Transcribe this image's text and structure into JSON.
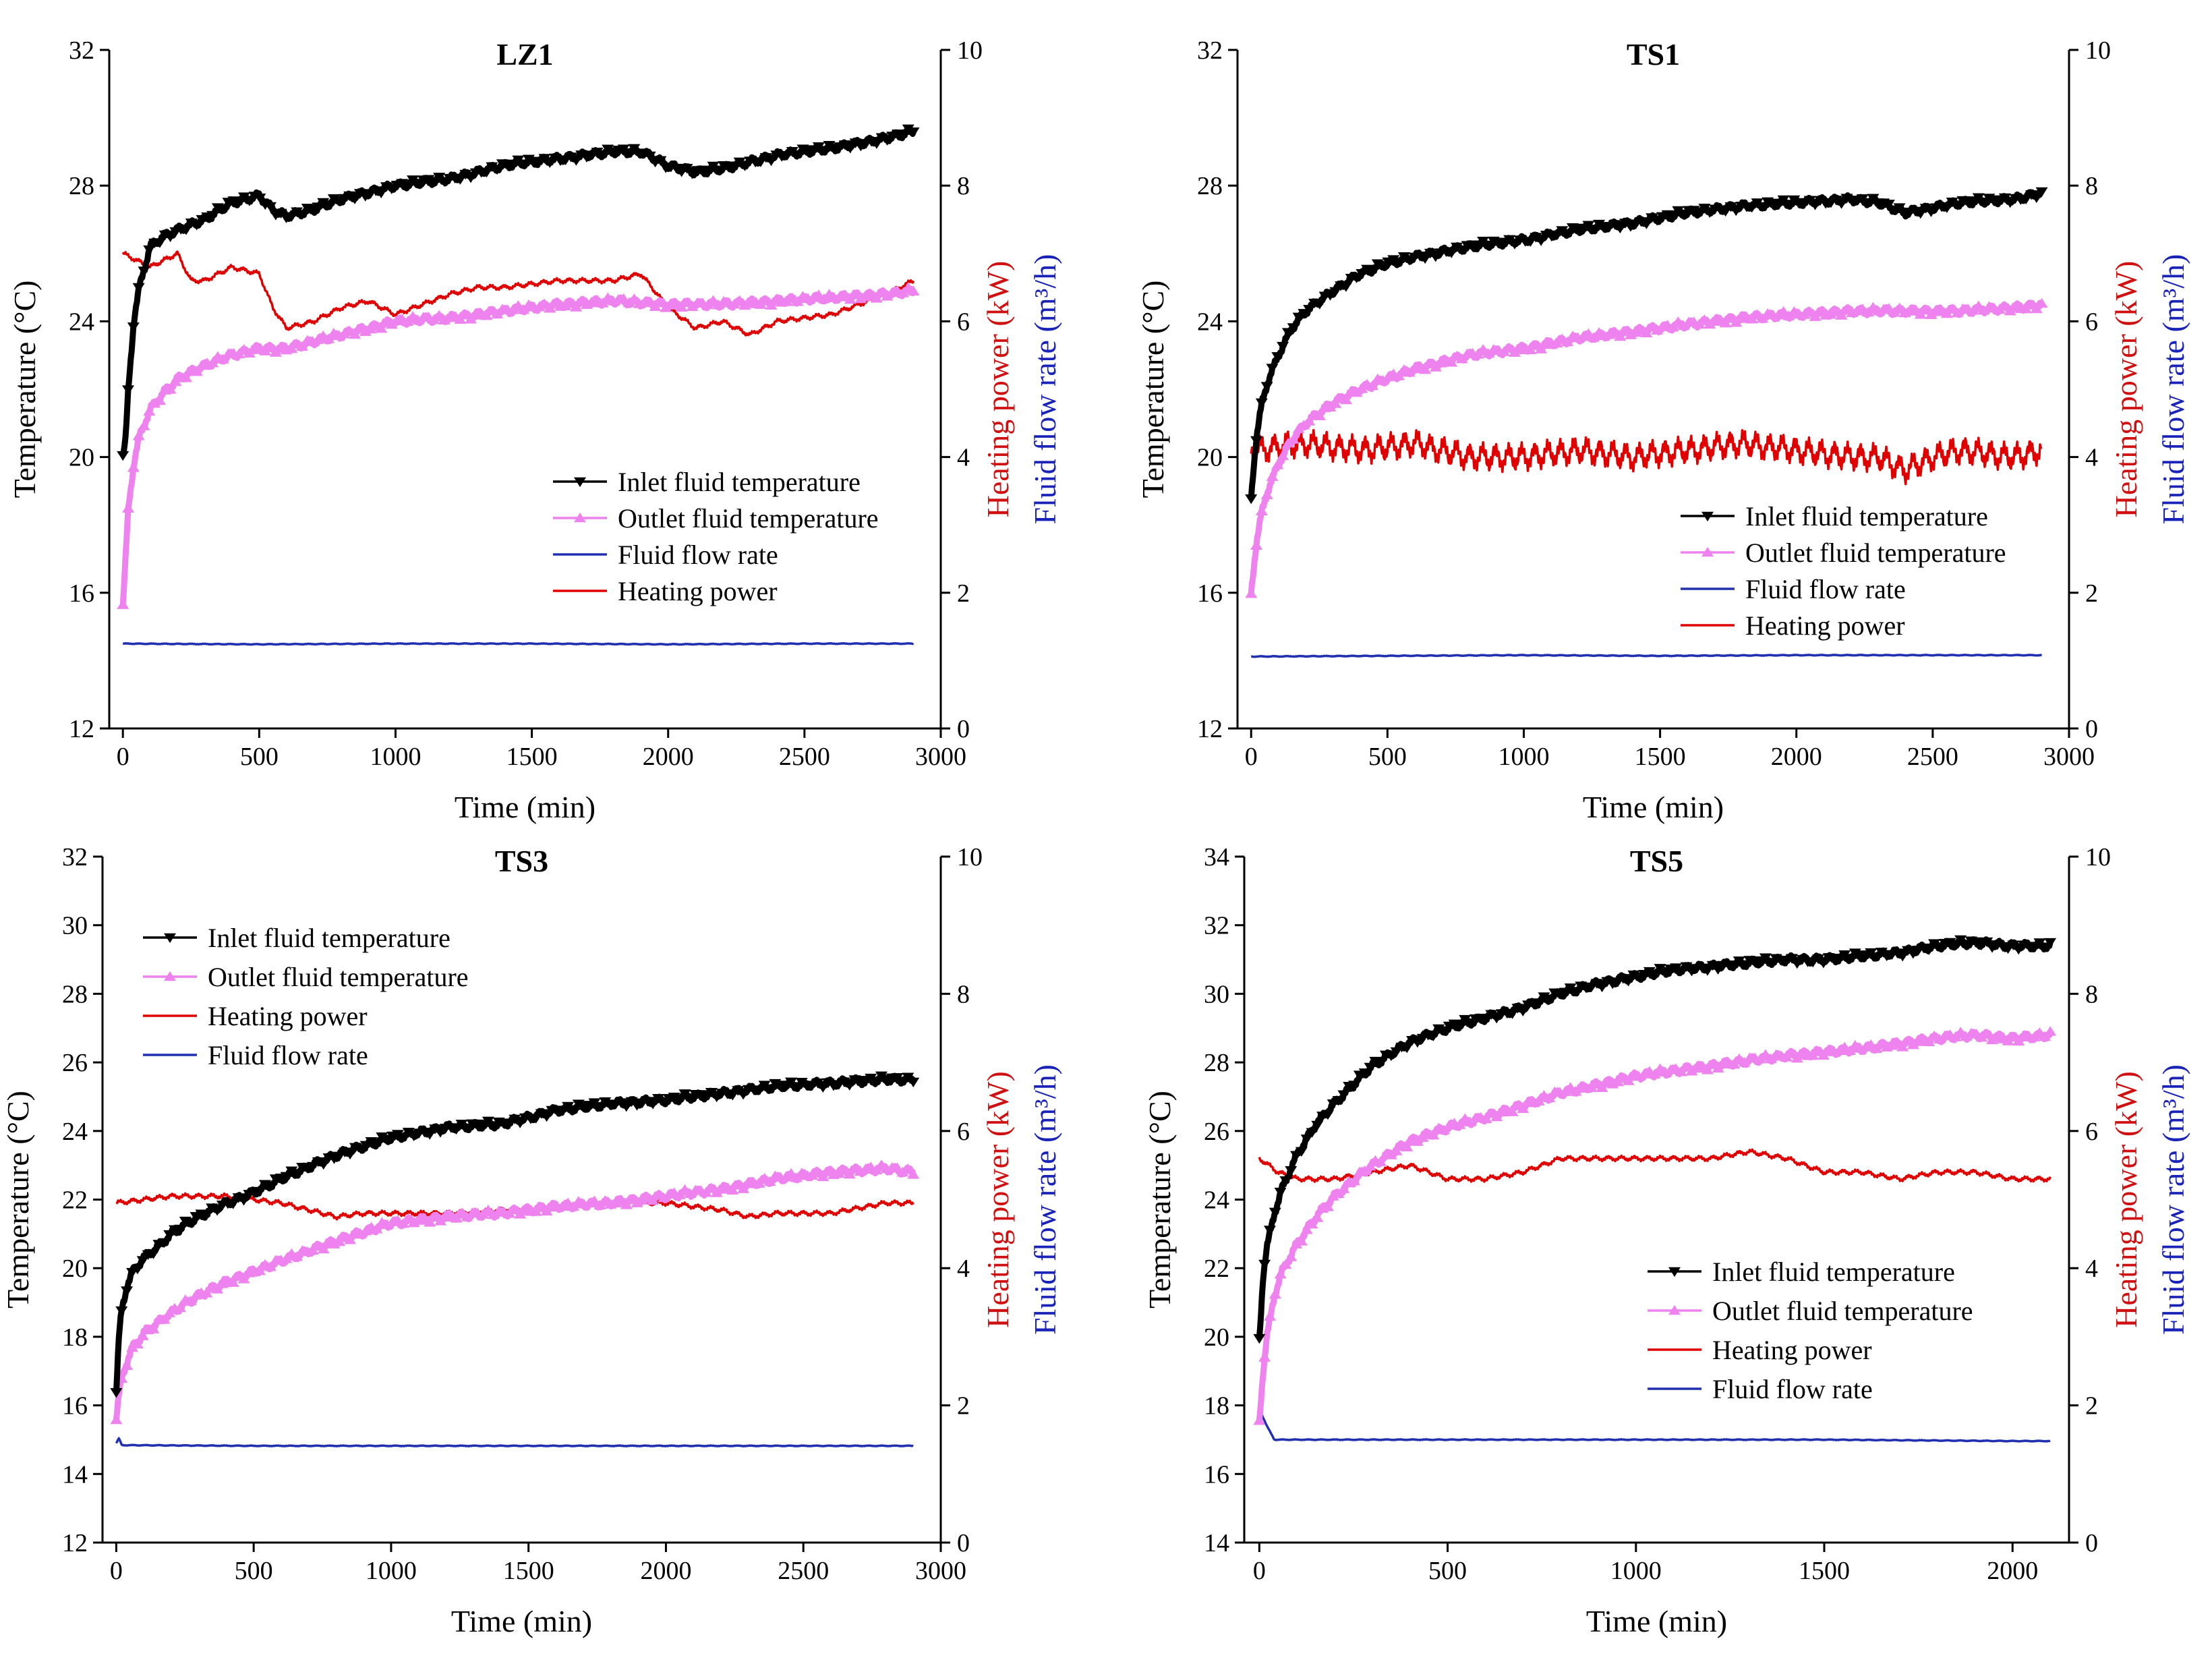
{
  "figure": {
    "colors": {
      "inlet": "#000000",
      "outlet": "#ee82ee",
      "heating": "#e00000",
      "flow": "#2030b0",
      "heating_label": "#d01010",
      "flow_label": "#1a23b8"
    }
  },
  "chart_data": [
    {
      "type": "line",
      "title": "LZ1",
      "xlabel": "Time (min)",
      "ylabel": "Temperature (°C)",
      "y2label_power": "Heating power (kW)",
      "y2label_flow": "Fluid flow rate (m³/h)",
      "xlim": [
        -50,
        3000
      ],
      "xticks": [
        0,
        500,
        1000,
        1500,
        2000,
        2500,
        3000
      ],
      "xtick_labels": [
        "0",
        "500",
        "1000",
        "1500",
        "2000",
        "2500",
        "3000"
      ],
      "ylim": [
        12,
        32
      ],
      "yticks": [
        12,
        16,
        20,
        24,
        28,
        32
      ],
      "ytick_labels": [
        "12",
        "16",
        "20",
        "24",
        "28",
        "32"
      ],
      "y2lim": [
        0,
        10
      ],
      "y2ticks": [
        0,
        2,
        4,
        6,
        8,
        10
      ],
      "y2tick_labels": [
        "0",
        "2",
        "4",
        "6",
        "8",
        "10"
      ],
      "legend": {
        "placement": "center-right",
        "entries": [
          "Inlet fluid temperature",
          "Outlet fluid temperature",
          "Fluid flow rate",
          "Heating power"
        ]
      },
      "series": [
        {
          "name": "Inlet fluid temperature",
          "axis": "left",
          "marker": "triangle-down",
          "x": [
            0,
            10,
            20,
            40,
            60,
            100,
            150,
            200,
            300,
            400,
            500,
            550,
            600,
            700,
            800,
            900,
            1000,
            1200,
            1400,
            1600,
            1800,
            1900,
            2000,
            2100,
            2200,
            2300,
            2400,
            2600,
            2800,
            2900
          ],
          "values": [
            20.0,
            20.5,
            22.0,
            24.0,
            25.0,
            26.2,
            26.5,
            26.7,
            27.0,
            27.5,
            27.7,
            27.3,
            27.1,
            27.3,
            27.6,
            27.8,
            28.0,
            28.2,
            28.6,
            28.8,
            29.0,
            29.0,
            28.6,
            28.4,
            28.5,
            28.7,
            28.9,
            29.1,
            29.4,
            29.6
          ]
        },
        {
          "name": "Outlet fluid temperature",
          "axis": "left",
          "marker": "triangle-up",
          "x": [
            0,
            10,
            20,
            40,
            60,
            100,
            150,
            200,
            300,
            400,
            500,
            600,
            700,
            800,
            900,
            1000,
            1200,
            1400,
            1600,
            1800,
            2000,
            2200,
            2400,
            2600,
            2800,
            2900
          ],
          "values": [
            15.6,
            17.0,
            18.5,
            19.8,
            20.6,
            21.4,
            21.9,
            22.3,
            22.7,
            23.0,
            23.2,
            23.2,
            23.4,
            23.6,
            23.8,
            24.0,
            24.1,
            24.3,
            24.5,
            24.6,
            24.5,
            24.5,
            24.6,
            24.7,
            24.8,
            24.9
          ]
        },
        {
          "name": "Heating power",
          "axis": "right",
          "x": [
            0,
            100,
            200,
            250,
            300,
            400,
            500,
            550,
            600,
            700,
            800,
            900,
            1000,
            1200,
            1300,
            1400,
            1600,
            1800,
            1900,
            2000,
            2100,
            2200,
            2300,
            2400,
            2600,
            2800,
            2900
          ],
          "values": [
            7.0,
            6.8,
            7.0,
            6.6,
            6.6,
            6.8,
            6.7,
            6.2,
            5.9,
            6.0,
            6.2,
            6.3,
            6.1,
            6.4,
            6.5,
            6.5,
            6.6,
            6.6,
            6.7,
            6.2,
            5.9,
            6.0,
            5.8,
            6.0,
            6.1,
            6.4,
            6.6
          ]
        },
        {
          "name": "Fluid flow rate",
          "axis": "right",
          "x": [
            0,
            500,
            1000,
            1500,
            2000,
            2500,
            2900
          ],
          "values": [
            1.25,
            1.24,
            1.25,
            1.25,
            1.24,
            1.25,
            1.25
          ]
        }
      ]
    },
    {
      "type": "line",
      "title": "TS1",
      "xlabel": "Time (min)",
      "ylabel": "Temperature (°C)",
      "y2label_power": "Heating power (kW)",
      "y2label_flow": "Fluid flow rate (m³/h)",
      "xlim": [
        -50,
        3000
      ],
      "xticks": [
        0,
        500,
        1000,
        1500,
        2000,
        2500,
        3000
      ],
      "xtick_labels": [
        "0",
        "500",
        "1000",
        "1500",
        "2000",
        "2500",
        "3000"
      ],
      "ylim": [
        12,
        32
      ],
      "yticks": [
        12,
        16,
        20,
        24,
        28,
        32
      ],
      "ytick_labels": [
        "12",
        "16",
        "20",
        "24",
        "28",
        "32"
      ],
      "y2lim": [
        0,
        10
      ],
      "y2ticks": [
        0,
        2,
        4,
        6,
        8,
        10
      ],
      "y2tick_labels": [
        "0",
        "2",
        "4",
        "6",
        "8",
        "10"
      ],
      "legend": {
        "placement": "lower-right",
        "entries": [
          "Inlet fluid temperature",
          "Outlet fluid temperature",
          "Fluid flow rate",
          "Heating power"
        ]
      },
      "series": [
        {
          "name": "Inlet fluid temperature",
          "axis": "left",
          "marker": "triangle-down",
          "x": [
            0,
            10,
            20,
            40,
            60,
            100,
            150,
            200,
            300,
            400,
            500,
            600,
            800,
            1000,
            1200,
            1400,
            1600,
            1800,
            2000,
            2200,
            2300,
            2400,
            2600,
            2800,
            2900
          ],
          "values": [
            18.8,
            19.8,
            20.6,
            21.6,
            22.2,
            23.0,
            23.8,
            24.3,
            24.9,
            25.4,
            25.7,
            25.9,
            26.2,
            26.4,
            26.7,
            26.9,
            27.2,
            27.4,
            27.5,
            27.6,
            27.5,
            27.2,
            27.5,
            27.6,
            27.8
          ]
        },
        {
          "name": "Outlet fluid temperature",
          "axis": "left",
          "marker": "triangle-up",
          "x": [
            0,
            10,
            20,
            40,
            60,
            100,
            150,
            200,
            300,
            400,
            500,
            600,
            800,
            1000,
            1200,
            1400,
            1600,
            1800,
            2000,
            2200,
            2400,
            2600,
            2800,
            2900
          ],
          "values": [
            16.0,
            16.8,
            17.5,
            18.4,
            19.0,
            19.8,
            20.5,
            21.0,
            21.6,
            22.0,
            22.3,
            22.6,
            23.0,
            23.2,
            23.5,
            23.7,
            23.9,
            24.1,
            24.2,
            24.3,
            24.3,
            24.3,
            24.4,
            24.5
          ]
        },
        {
          "name": "Heating power",
          "axis": "right",
          "x": [
            0,
            200,
            400,
            600,
            800,
            1000,
            1200,
            1400,
            1600,
            1800,
            2000,
            2200,
            2300,
            2400,
            2500,
            2600,
            2800,
            2900
          ],
          "values": [
            4.1,
            4.2,
            4.1,
            4.2,
            4.0,
            4.0,
            4.1,
            4.0,
            4.1,
            4.2,
            4.1,
            4.0,
            4.0,
            3.8,
            4.0,
            4.1,
            4.0,
            4.1
          ]
        },
        {
          "name": "Fluid flow rate",
          "axis": "right",
          "x": [
            0,
            500,
            1000,
            1500,
            2000,
            2500,
            2900
          ],
          "values": [
            1.06,
            1.07,
            1.08,
            1.07,
            1.08,
            1.08,
            1.08
          ]
        }
      ]
    },
    {
      "type": "line",
      "title": "TS3",
      "xlabel": "Time (min)",
      "ylabel": "Temperature (°C)",
      "y2label_power": "Heating power (kW)",
      "y2label_flow": "Fluid flow rate (m³/h)",
      "xlim": [
        -50,
        3000
      ],
      "xticks": [
        0,
        500,
        1000,
        1500,
        2000,
        2500,
        3000
      ],
      "xtick_labels": [
        "0",
        "500",
        "1000",
        "1500",
        "2000",
        "2500",
        "3000"
      ],
      "ylim": [
        12,
        32
      ],
      "yticks": [
        12,
        14,
        16,
        18,
        20,
        22,
        24,
        26,
        28,
        30,
        32
      ],
      "ytick_labels": [
        "12",
        "14",
        "16",
        "18",
        "20",
        "22",
        "24",
        "26",
        "28",
        "30",
        "32"
      ],
      "y2lim": [
        0,
        10
      ],
      "y2ticks": [
        0,
        2,
        4,
        6,
        8,
        10
      ],
      "y2tick_labels": [
        "0",
        "2",
        "4",
        "6",
        "8",
        "10"
      ],
      "legend": {
        "placement": "top-left",
        "entries": [
          "Inlet fluid temperature",
          "Outlet fluid temperature",
          "Heating power",
          "Fluid flow rate"
        ]
      },
      "series": [
        {
          "name": "Inlet fluid temperature",
          "axis": "left",
          "marker": "triangle-down",
          "x": [
            0,
            5,
            10,
            20,
            40,
            60,
            100,
            150,
            200,
            300,
            400,
            500,
            600,
            800,
            1000,
            1200,
            1400,
            1600,
            1800,
            2000,
            2200,
            2400,
            2600,
            2800,
            2900
          ],
          "values": [
            16.4,
            17.2,
            18.0,
            18.8,
            19.5,
            19.9,
            20.3,
            20.6,
            21.0,
            21.5,
            21.9,
            22.2,
            22.6,
            23.3,
            23.8,
            24.1,
            24.2,
            24.6,
            24.8,
            24.9,
            25.1,
            25.3,
            25.4,
            25.5,
            25.5
          ]
        },
        {
          "name": "Outlet fluid temperature",
          "axis": "left",
          "marker": "triangle-up",
          "x": [
            0,
            10,
            20,
            40,
            60,
            100,
            150,
            200,
            300,
            400,
            500,
            600,
            800,
            1000,
            1200,
            1400,
            1600,
            1800,
            2000,
            2200,
            2400,
            2600,
            2800,
            2900
          ],
          "values": [
            15.6,
            16.3,
            16.8,
            17.3,
            17.7,
            18.1,
            18.4,
            18.7,
            19.2,
            19.6,
            19.9,
            20.2,
            20.8,
            21.3,
            21.5,
            21.6,
            21.8,
            21.9,
            22.1,
            22.3,
            22.6,
            22.8,
            22.9,
            22.8
          ]
        },
        {
          "name": "Heating power",
          "axis": "right",
          "x": [
            0,
            100,
            200,
            300,
            400,
            500,
            600,
            700,
            800,
            900,
            1000,
            1200,
            1400,
            1600,
            1800,
            2000,
            2200,
            2300,
            2400,
            2600,
            2800,
            2900
          ],
          "values": [
            4.95,
            5.0,
            5.05,
            5.05,
            5.05,
            5.0,
            4.95,
            4.85,
            4.75,
            4.8,
            4.8,
            4.8,
            4.85,
            4.9,
            4.95,
            4.95,
            4.85,
            4.75,
            4.8,
            4.8,
            4.95,
            4.95
          ]
        },
        {
          "name": "Fluid flow rate",
          "axis": "right",
          "x": [
            0,
            10,
            20,
            500,
            1000,
            1500,
            2000,
            2500,
            2900
          ],
          "values": [
            1.45,
            1.52,
            1.42,
            1.41,
            1.41,
            1.41,
            1.41,
            1.41,
            1.41
          ]
        }
      ]
    },
    {
      "type": "line",
      "title": "TS5",
      "xlabel": "Time (min)",
      "ylabel": "Temperature (°C)",
      "y2label_power": "Heating power (kW)",
      "y2label_flow": "Fluid flow rate (m³/h)",
      "xlim": [
        -40,
        2150
      ],
      "xticks": [
        0,
        500,
        1000,
        1500,
        2000
      ],
      "xtick_labels": [
        "0",
        "500",
        "1000",
        "1500",
        "2000"
      ],
      "ylim": [
        14,
        34
      ],
      "yticks": [
        14,
        16,
        18,
        20,
        22,
        24,
        26,
        28,
        30,
        32,
        34
      ],
      "ytick_labels": [
        "14",
        "16",
        "18",
        "20",
        "22",
        "24",
        "26",
        "28",
        "30",
        "32",
        "34"
      ],
      "y2lim": [
        0,
        10
      ],
      "y2ticks": [
        0,
        2,
        4,
        6,
        8,
        10
      ],
      "y2tick_labels": [
        "0",
        "2",
        "4",
        "6",
        "8",
        "10"
      ],
      "legend": {
        "placement": "lower-right",
        "entries": [
          "Inlet fluid temperature",
          "Outlet fluid temperature",
          "Heating power",
          "Fluid flow rate"
        ]
      },
      "series": [
        {
          "name": "Inlet fluid temperature",
          "axis": "left",
          "marker": "triangle-down",
          "x": [
            0,
            5,
            10,
            20,
            40,
            60,
            100,
            150,
            200,
            300,
            400,
            500,
            600,
            700,
            800,
            900,
            1000,
            1100,
            1200,
            1300,
            1400,
            1500,
            1600,
            1700,
            1800,
            1900,
            2000,
            2100
          ],
          "values": [
            19.9,
            20.8,
            21.8,
            22.6,
            23.6,
            24.3,
            25.3,
            26.2,
            26.8,
            27.9,
            28.6,
            29.0,
            29.3,
            29.6,
            30.0,
            30.3,
            30.5,
            30.7,
            30.8,
            30.9,
            31.0,
            31.0,
            31.1,
            31.2,
            31.4,
            31.5,
            31.4,
            31.4
          ]
        },
        {
          "name": "Outlet fluid temperature",
          "axis": "left",
          "marker": "triangle-up",
          "x": [
            0,
            10,
            20,
            40,
            60,
            100,
            150,
            200,
            300,
            400,
            500,
            600,
            800,
            1000,
            1200,
            1400,
            1600,
            1800,
            1900,
            2000,
            2100
          ],
          "values": [
            17.5,
            19.0,
            20.0,
            21.2,
            21.9,
            22.7,
            23.5,
            24.1,
            25.0,
            25.7,
            26.1,
            26.4,
            27.1,
            27.6,
            27.9,
            28.2,
            28.4,
            28.7,
            28.8,
            28.7,
            28.8
          ]
        },
        {
          "name": "Heating power",
          "axis": "right",
          "x": [
            0,
            50,
            100,
            200,
            300,
            400,
            500,
            600,
            700,
            800,
            900,
            1000,
            1200,
            1300,
            1400,
            1500,
            1600,
            1700,
            1800,
            1900,
            2000,
            2100
          ],
          "values": [
            5.6,
            5.4,
            5.3,
            5.3,
            5.4,
            5.5,
            5.3,
            5.3,
            5.4,
            5.6,
            5.6,
            5.6,
            5.6,
            5.7,
            5.6,
            5.4,
            5.4,
            5.3,
            5.4,
            5.4,
            5.3,
            5.3
          ]
        },
        {
          "name": "Fluid flow rate",
          "axis": "right",
          "x": [
            0,
            20,
            40,
            500,
            1000,
            1500,
            2000,
            2100
          ],
          "values": [
            1.95,
            1.7,
            1.5,
            1.5,
            1.5,
            1.5,
            1.48,
            1.48
          ]
        }
      ]
    }
  ]
}
